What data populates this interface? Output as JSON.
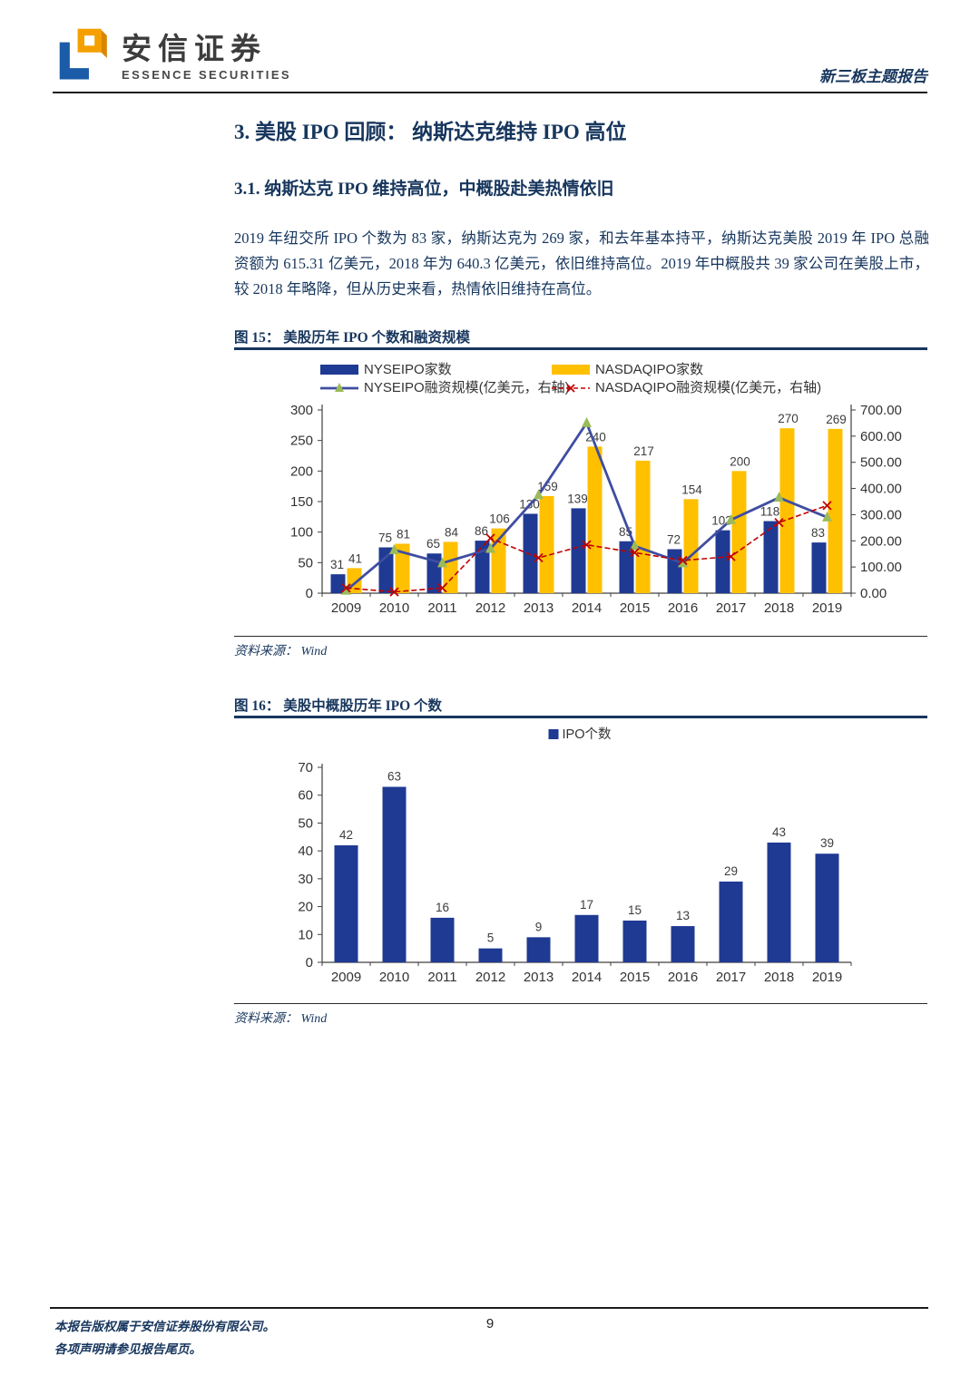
{
  "header": {
    "brand_cn": "安信证券",
    "brand_en": "ESSENCE SECURITIES",
    "report_type": "新三板主题报告"
  },
  "body": {
    "h1": "3. 美股 IPO 回顾： 纳斯达克维持 IPO 高位",
    "h2": "3.1. 纳斯达克 IPO 维持高位，中概股赴美热情依旧",
    "paragraph": "2019 年纽交所 IPO 个数为 83 家，纳斯达克为 269 家，和去年基本持平，纳斯达克美股 2019 年 IPO 总融资额为 615.31 亿美元，2018 年为 640.3 亿美元，依旧维持高位。2019 年中概股共 39 家公司在美股上市，较 2018 年略降，但从历史来看，热情依旧维持在高位。"
  },
  "figures": {
    "fig15": {
      "title": "图 15： 美股历年 IPO 个数和融资规模",
      "source_label": "资料来源：",
      "source": "Wind"
    },
    "fig16": {
      "title": "图 16： 美股中概股历年 IPO 个数",
      "source_label": "资料来源：",
      "source": "Wind"
    }
  },
  "footer": {
    "line1": "本报告版权属于安信证券股份有限公司。",
    "line2": "各项声明请参见报告尾页。",
    "page_number": "9"
  },
  "colors": {
    "heading_navy": "#17365D",
    "bar_navy": "#1F3A93",
    "bar_gold": "#FFC000",
    "line_blue": "#3F4DA1",
    "marker_green": "#9BBB59",
    "line_red": "#C00000"
  },
  "chart_data": [
    {
      "type": "bar",
      "subtype": "combo-bar-line",
      "title": "美股历年IPO个数和融资规模",
      "categories": [
        "2009",
        "2010",
        "2011",
        "2012",
        "2013",
        "2014",
        "2015",
        "2016",
        "2017",
        "2018",
        "2019"
      ],
      "series": [
        {
          "name": "NYSEIPO家数",
          "type": "bar",
          "axis": "left",
          "color": "#1F3A93",
          "values": [
            31,
            75,
            65,
            86,
            130,
            139,
            85,
            72,
            103,
            118,
            83
          ]
        },
        {
          "name": "NASDAQIPO家数",
          "type": "bar",
          "axis": "left",
          "color": "#FFC000",
          "values": [
            41,
            81,
            84,
            106,
            159,
            240,
            217,
            154,
            200,
            270,
            269
          ]
        },
        {
          "name": "NYSEIPO融资规模(亿美元，右轴)",
          "type": "line",
          "axis": "right",
          "color": "#3F4DA1",
          "marker": "triangle",
          "marker_color": "#9BBB59",
          "dash": false,
          "values": [
            10,
            165,
            115,
            170,
            375,
            650,
            180,
            115,
            280,
            365,
            290
          ]
        },
        {
          "name": "NASDAQIPO融资规模(亿美元，右轴)",
          "type": "line",
          "axis": "right",
          "color": "#C00000",
          "marker": "x",
          "dash": true,
          "values": [
            20,
            5,
            20,
            210,
            135,
            185,
            155,
            125,
            140,
            270,
            335
          ]
        }
      ],
      "left_axis": {
        "min": 0,
        "max": 300,
        "step": 50
      },
      "right_axis": {
        "min": 0,
        "max": 700,
        "step": 100,
        "decimals": 2
      },
      "grid": false,
      "legend_position": "top"
    },
    {
      "type": "bar",
      "title": "美股中概股历年IPO个数",
      "legend": "IPO个数",
      "color": "#1F3A93",
      "categories": [
        "2009",
        "2010",
        "2011",
        "2012",
        "2013",
        "2014",
        "2015",
        "2016",
        "2017",
        "2018",
        "2019"
      ],
      "values": [
        42,
        63,
        16,
        5,
        9,
        17,
        15,
        13,
        29,
        43,
        39
      ],
      "y_axis": {
        "min": 0,
        "max": 70,
        "step": 10
      },
      "grid": false,
      "legend_position": "top"
    }
  ]
}
